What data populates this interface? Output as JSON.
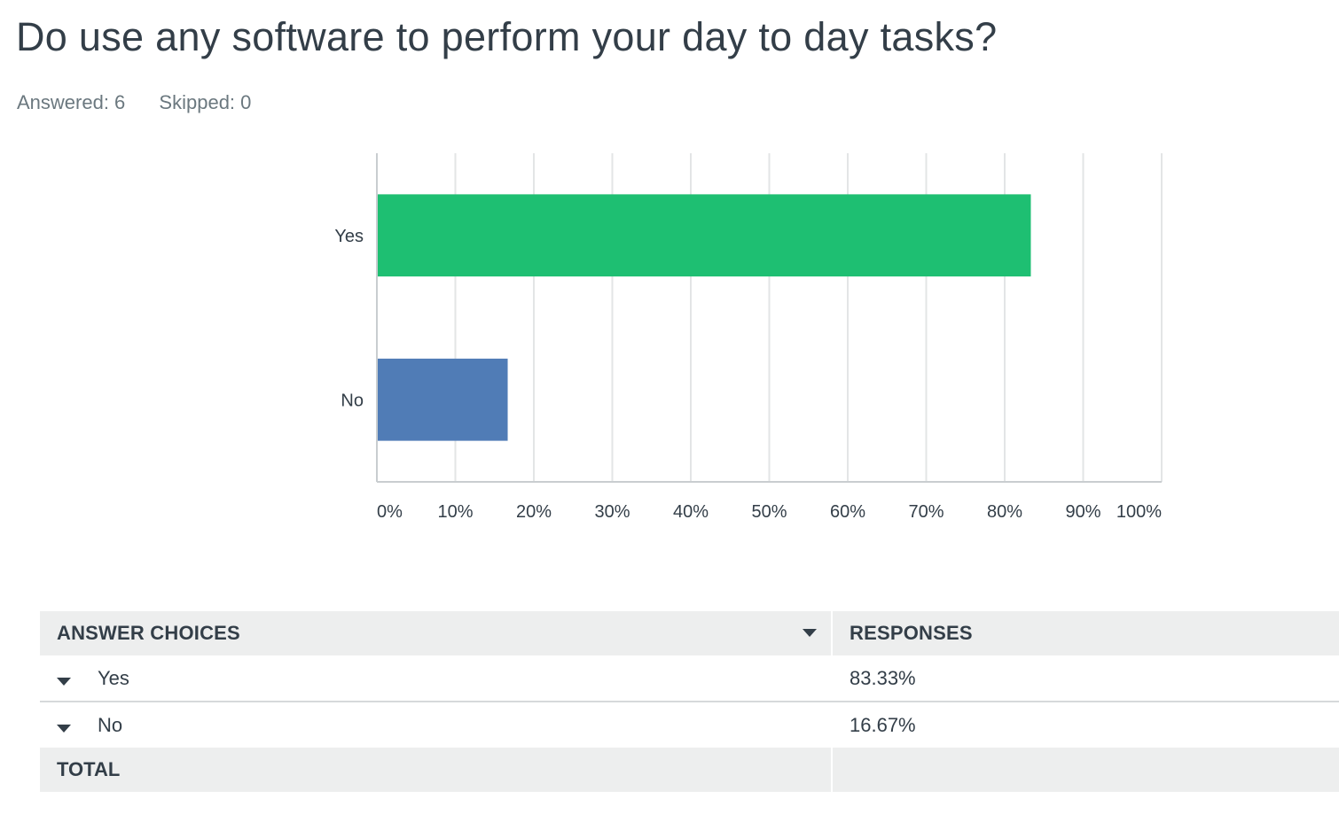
{
  "question": {
    "title": "Do use any software to perform your day to day tasks?",
    "answered_label": "Answered: 6",
    "skipped_label": "Skipped: 0"
  },
  "colors": {
    "grid": "#e3e5e6",
    "axis": "#c9cdd0",
    "yes_bar": "#1ebf72",
    "no_bar": "#507cb6"
  },
  "chart_data": {
    "type": "bar",
    "orientation": "horizontal",
    "categories": [
      "Yes",
      "No"
    ],
    "values": [
      83.33,
      16.67
    ],
    "bar_colors": [
      "#1ebf72",
      "#507cb6"
    ],
    "xlim": [
      0,
      100
    ],
    "x_ticks": [
      "0%",
      "10%",
      "20%",
      "30%",
      "40%",
      "50%",
      "60%",
      "70%",
      "80%",
      "90%",
      "100%"
    ],
    "grid": true,
    "title": "",
    "xlabel": "",
    "ylabel": ""
  },
  "table": {
    "header_choices": "ANSWER CHOICES",
    "header_responses": "RESPONSES",
    "rows": [
      {
        "choice": "Yes",
        "response": "83.33%"
      },
      {
        "choice": "No",
        "response": "16.67%"
      }
    ],
    "total_label": "TOTAL",
    "total_value": ""
  }
}
